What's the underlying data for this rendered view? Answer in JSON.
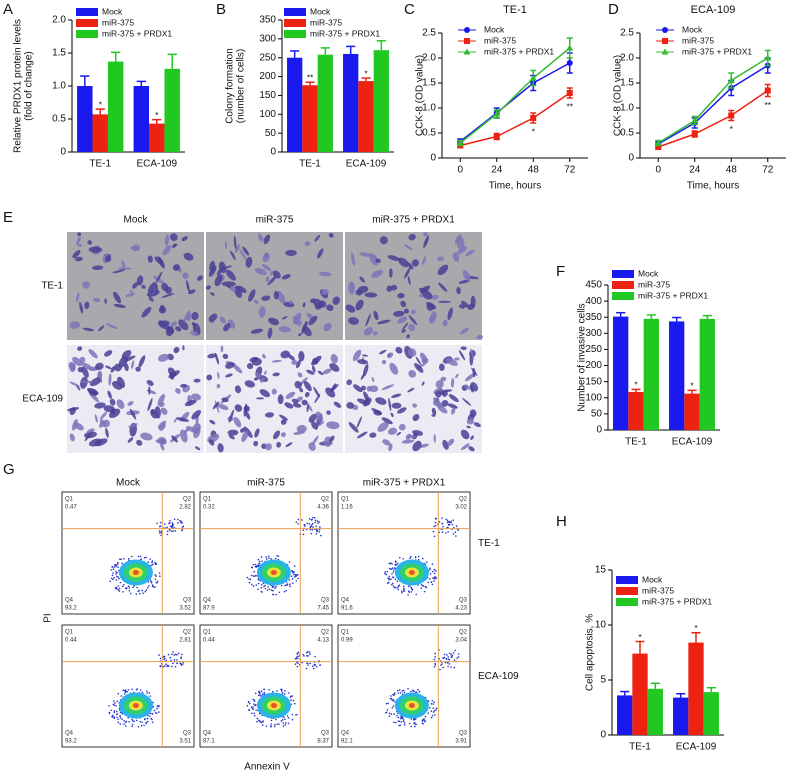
{
  "chart_data": [
    {
      "type": "bar",
      "label": "A",
      "ylabel": [
        "Relative PRDX1 protein levels",
        "(fold of change)"
      ],
      "categories": [
        "TE-1",
        "ECA-109"
      ],
      "ylim": [
        0,
        2
      ],
      "yticks": [
        0,
        0.5,
        {
          "value": 1,
          "label": "1.0"
        },
        1.5,
        {
          "value": 2,
          "label": "2.0"
        }
      ],
      "series": [
        {
          "name": "Mock",
          "color": "#1a1aee",
          "values": [
            1.0,
            1.0
          ],
          "errors": [
            0.15,
            0.07
          ]
        },
        {
          "name": "miR-375",
          "color": "#ee2211",
          "values": [
            0.57,
            0.43
          ],
          "errors": [
            0.08,
            0.06
          ],
          "stars": [
            "*",
            "*"
          ]
        },
        {
          "name": "miR-375 + PRDX1",
          "color": "#22c822",
          "values": [
            1.37,
            1.26
          ],
          "errors": [
            0.14,
            0.22
          ]
        }
      ]
    },
    {
      "type": "bar",
      "label": "B",
      "ylabel": [
        "Colony formation",
        "(number of cells)"
      ],
      "categories": [
        "TE-1",
        "ECA-109"
      ],
      "ylim": [
        0,
        350
      ],
      "yticks": [
        0,
        50,
        100,
        150,
        200,
        250,
        300,
        350
      ],
      "series": [
        {
          "name": "Mock",
          "color": "#1a1aee",
          "values": [
            250,
            260
          ],
          "errors": [
            18,
            20
          ]
        },
        {
          "name": "miR-375",
          "color": "#ee2211",
          "values": [
            177,
            188
          ],
          "errors": [
            8,
            8
          ],
          "stars": [
            "**",
            "*"
          ]
        },
        {
          "name": "miR-375 + PRDX1",
          "color": "#22c822",
          "values": [
            258,
            270
          ],
          "errors": [
            18,
            25
          ]
        }
      ]
    },
    {
      "type": "line",
      "label": "C",
      "title": "TE-1",
      "ylabel": [
        "CCK-8 (OD value)"
      ],
      "xlabel": "Time, hours",
      "categories": [
        "0",
        "24",
        "48",
        "72"
      ],
      "ylim": [
        0,
        2.5
      ],
      "yticks": [
        0,
        0.5,
        {
          "value": 1,
          "label": "1.0"
        },
        1.5,
        {
          "value": 2,
          "label": "2.0"
        },
        2.5
      ],
      "series": [
        {
          "name": "Mock",
          "color": "#1a1aee",
          "marker": "circle",
          "values": [
            0.33,
            0.9,
            1.5,
            1.9
          ],
          "errors": [
            0.05,
            0.1,
            0.15,
            0.2
          ]
        },
        {
          "name": "miR-375",
          "color": "#ee2211",
          "marker": "square",
          "values": [
            0.25,
            0.43,
            0.8,
            1.3
          ],
          "errors": [
            0.04,
            0.06,
            0.1,
            0.1
          ],
          "stars": [
            null,
            null,
            "*",
            "**"
          ]
        },
        {
          "name": "miR-375 + PRDX1",
          "color": "#33bb33",
          "marker": "triangle",
          "values": [
            0.3,
            0.88,
            1.6,
            2.2
          ],
          "errors": [
            0.05,
            0.08,
            0.15,
            0.2
          ]
        }
      ]
    },
    {
      "type": "line",
      "label": "D",
      "title": "ECA-109",
      "ylabel": [
        "CCK-8 (OD value)"
      ],
      "xlabel": "Time, hours",
      "categories": [
        "0",
        "24",
        "48",
        "72"
      ],
      "ylim": [
        0,
        2.5
      ],
      "yticks": [
        0,
        0.5,
        {
          "value": 1,
          "label": "1.0"
        },
        1.5,
        {
          "value": 2,
          "label": "2.0"
        },
        2.5
      ],
      "series": [
        {
          "name": "Mock",
          "color": "#1a1aee",
          "marker": "circle",
          "values": [
            0.28,
            0.7,
            1.4,
            1.85
          ],
          "errors": [
            0.05,
            0.1,
            0.15,
            0.15
          ]
        },
        {
          "name": "miR-375",
          "color": "#ee2211",
          "marker": "square",
          "values": [
            0.22,
            0.48,
            0.85,
            1.35
          ],
          "errors": [
            0.04,
            0.06,
            0.1,
            0.12
          ],
          "stars": [
            null,
            null,
            "*",
            "**"
          ]
        },
        {
          "name": "miR-375 + PRDX1",
          "color": "#33bb33",
          "marker": "triangle",
          "values": [
            0.3,
            0.75,
            1.55,
            2.0
          ],
          "errors": [
            0.05,
            0.08,
            0.15,
            0.15
          ]
        }
      ]
    },
    {
      "type": "bar",
      "label": "F",
      "ylabel": [
        "Number of invasive cells"
      ],
      "categories": [
        "TE-1",
        "ECA-109"
      ],
      "ylim": [
        0,
        450
      ],
      "yticks": [
        0,
        50,
        100,
        150,
        200,
        250,
        300,
        350,
        400,
        450
      ],
      "series": [
        {
          "name": "Mock",
          "color": "#1a1aee",
          "values": [
            352,
            337
          ],
          "errors": [
            12,
            12
          ]
        },
        {
          "name": "miR-375",
          "color": "#ee2211",
          "values": [
            118,
            113
          ],
          "errors": [
            8,
            10
          ],
          "stars": [
            "*",
            "*"
          ]
        },
        {
          "name": "miR-375 + PRDX1",
          "color": "#22c822",
          "values": [
            345,
            345
          ],
          "errors": [
            12,
            10
          ]
        }
      ]
    },
    {
      "type": "bar",
      "label": "H",
      "ylabel": [
        "Cell apoptosis, %"
      ],
      "categories": [
        "TE-1",
        "ECA-109"
      ],
      "ylim": [
        0,
        15
      ],
      "yticks": [
        0,
        5,
        10,
        15
      ],
      "series": [
        {
          "name": "Mock",
          "color": "#1a1aee",
          "values": [
            3.6,
            3.4
          ],
          "errors": [
            0.35,
            0.35
          ]
        },
        {
          "name": "miR-375",
          "color": "#ee2211",
          "values": [
            7.4,
            8.4
          ],
          "errors": [
            1.1,
            0.9
          ],
          "stars": [
            "*",
            "*"
          ]
        },
        {
          "name": "miR-375 + PRDX1",
          "color": "#22c822",
          "values": [
            4.2,
            3.9
          ],
          "errors": [
            0.5,
            0.4
          ]
        }
      ]
    }
  ],
  "panel_e": {
    "label": "E",
    "columns": [
      "Mock",
      "miR-375",
      "miR-375 + PRDX1"
    ],
    "rows": [
      "TE-1",
      "ECA-109"
    ]
  },
  "panel_g": {
    "label": "G",
    "columns": [
      "Mock",
      "miR-375",
      "miR-375 + PRDX1"
    ],
    "rows": [
      "TE-1",
      "ECA-109"
    ],
    "y_axis": "PI",
    "x_axis": "Annexin V",
    "quadrant_names": [
      "Q1",
      "Q2",
      "Q3",
      "Q4"
    ],
    "plots": [
      [
        [
          "0.47",
          "2.82",
          "3.52",
          "93.2"
        ],
        [
          "0.32",
          "4.36",
          "7.45",
          "87.9"
        ],
        [
          "1.16",
          "3.02",
          "4.23",
          "91.6"
        ]
      ],
      [
        [
          "0.44",
          "2.81",
          "3.51",
          "93.2"
        ],
        [
          "0.44",
          "4.13",
          "8.37",
          "87.1"
        ],
        [
          "0.99",
          "3.04",
          "3.91",
          "92.1"
        ]
      ]
    ]
  }
}
